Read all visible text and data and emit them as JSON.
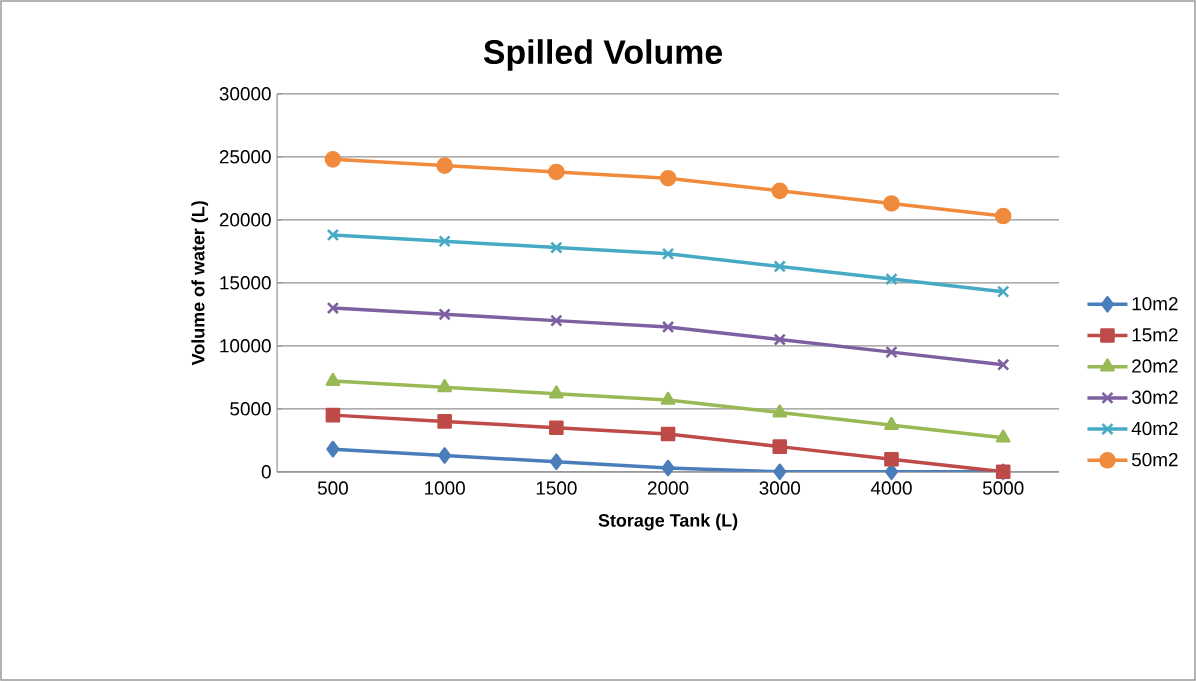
{
  "chart_data": {
    "type": "line",
    "title": "Spilled Volume",
    "xlabel": "Storage Tank (L)",
    "ylabel": "Volume of water (L)",
    "categories": [
      "500",
      "1000",
      "1500",
      "2000",
      "3000",
      "4000",
      "5000"
    ],
    "series": [
      {
        "name": "10m2",
        "color": "#4a7ebb",
        "marker": "diamond",
        "values": [
          1800,
          1300,
          800,
          300,
          0,
          0,
          0
        ]
      },
      {
        "name": "15m2",
        "color": "#be4b48",
        "marker": "square",
        "values": [
          4500,
          4000,
          3500,
          3000,
          2000,
          1000,
          0
        ]
      },
      {
        "name": "20m2",
        "color": "#98b954",
        "marker": "triangle",
        "values": [
          7200,
          6700,
          6200,
          5700,
          4700,
          3700,
          2700
        ]
      },
      {
        "name": "30m2",
        "color": "#7d60a0",
        "marker": "cross",
        "values": [
          13000,
          12500,
          12000,
          11500,
          10500,
          9500,
          8500
        ]
      },
      {
        "name": "40m2",
        "color": "#46aac5",
        "marker": "cross",
        "values": [
          18800,
          18300,
          17800,
          17300,
          16300,
          15300,
          14300
        ]
      },
      {
        "name": "50m2",
        "color": "#f08a3c",
        "marker": "circle",
        "values": [
          24800,
          24300,
          23800,
          23300,
          22300,
          21300,
          20300
        ]
      }
    ],
    "ylim": [
      0,
      30000
    ],
    "yticks": [
      0,
      5000,
      10000,
      15000,
      20000,
      25000,
      30000
    ],
    "grid": "y",
    "legend": "right",
    "line_style": "solid"
  }
}
